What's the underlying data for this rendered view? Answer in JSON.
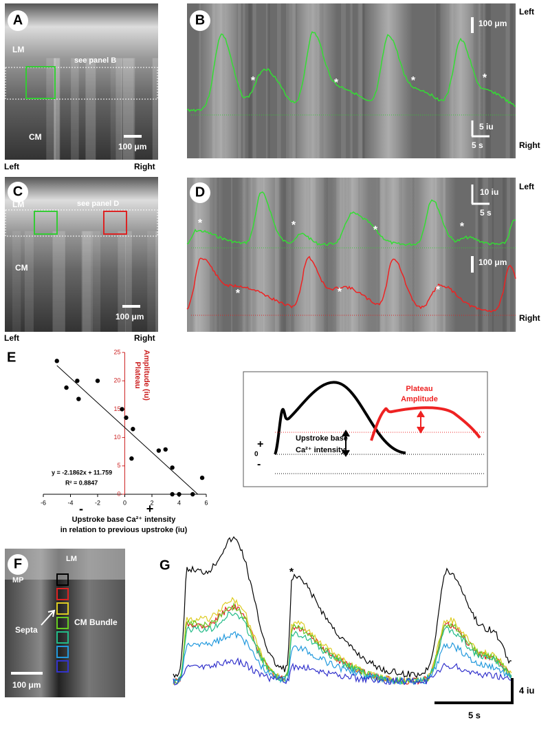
{
  "panels": {
    "A": {
      "label": "A",
      "lm": "LM",
      "note": "see panel B",
      "cm": "CM",
      "scale": "100 μm",
      "left": "Left",
      "right": "Right"
    },
    "B": {
      "label": "B",
      "scale_distance": "100 μm",
      "scale_intensity": "5 iu",
      "scale_time": "5 s",
      "left": "Left",
      "right": "Right",
      "markers": [
        "*",
        "*",
        "*",
        "*"
      ]
    },
    "C": {
      "label": "C",
      "lm": "LM",
      "note": "see panel D",
      "cm": "CM",
      "scale": "100 μm",
      "left": "Left",
      "right": "Right"
    },
    "D": {
      "label": "D",
      "scale_intensity": "10 iu",
      "scale_time": "5 s",
      "scale_distance": "100 μm",
      "left": "Left",
      "right": "Right",
      "markers": [
        "*",
        "*",
        "*",
        "*",
        "*",
        "*",
        "*"
      ]
    },
    "E": {
      "label": "E",
      "schematic": {
        "plateau": "Plateau",
        "amplitude": "Amplitude",
        "upstroke_base": "Upstroke base",
        "intensity": "Ca²⁺ intensity",
        "plus": "+",
        "zero": "0",
        "minus": "-"
      }
    },
    "F": {
      "label": "F",
      "lm": "LM",
      "mp": "MP",
      "septa": "Septa",
      "bundle": "CM Bundle",
      "scale": "100 μm"
    },
    "G": {
      "label": "G",
      "marker": "*",
      "scale_intensity": "4 iu",
      "scale_time": "5 s"
    }
  },
  "chart_data": {
    "type": "scatter",
    "y_label": [
      "Plateau",
      "Amplitude (iu)"
    ],
    "x_label": [
      "Upstroke base Ca²⁺ intensity",
      "in relation to previous upstroke (iu)"
    ],
    "x_signs": [
      "-",
      "+"
    ],
    "equation": "y = -2.1862x + 11.759",
    "r_squared": "R² = 0.8847",
    "trendline": {
      "slope": -2.1862,
      "intercept": 11.759
    },
    "x": [
      -5,
      -4.3,
      -3.5,
      -3.4,
      -2,
      -0.2,
      0.1,
      0.6,
      0.5,
      2.5,
      3,
      3.5,
      3.5,
      4,
      5,
      5.7
    ],
    "values": [
      23.5,
      18.8,
      20,
      16.8,
      20,
      15,
      13.5,
      11.5,
      6.3,
      7.7,
      7.9,
      4.7,
      0,
      0,
      0,
      2.9
    ],
    "color": "#000000",
    "y_axis_color": "#cc2222",
    "xlim": [
      -6,
      6
    ],
    "xticks": [
      -6,
      -4,
      -2,
      0,
      2,
      4,
      6
    ],
    "ylim": [
      0,
      25
    ],
    "yticks": [
      0,
      5,
      10,
      15,
      20,
      25
    ]
  }
}
